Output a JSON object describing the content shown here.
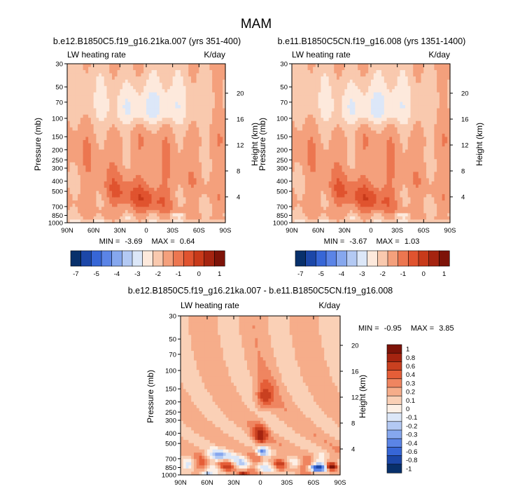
{
  "title": "MAM",
  "panels": [
    {
      "title": "b.e12.B1850C5.f19_g16.21ka.007 (yrs 351-400)",
      "left_label": "LW heating rate",
      "right_label": "K/day",
      "ylabel": "Pressure (mb)",
      "ylabel_right": "Height (km)",
      "min_label": "MIN =",
      "min": "-3.69",
      "max_label": "MAX =",
      "max": "0.64"
    },
    {
      "title": "b.e11.B1850C5CN.f19_g16.008 (yrs 1351-1400)",
      "left_label": "LW heating rate",
      "right_label": "K/day",
      "ylabel": "Pressure (mb)",
      "ylabel_right": "Height (km)",
      "min_label": "MIN =",
      "min": "-3.67",
      "max_label": "MAX =",
      "max": "1.03"
    },
    {
      "title": "b.e12.B1850C5.f19_g16.21ka.007 - b.e11.B1850C5CN.f19_g16.008",
      "left_label": "LW heating rate",
      "right_label": "K/day",
      "ylabel": "Pressure (mb)",
      "ylabel_right": "Height (km)",
      "min_label": "MIN =",
      "min": "-0.95",
      "max_label": "MAX =",
      "max": "3.85"
    }
  ],
  "chart_data": [
    {
      "type": "heatmap",
      "title": "b.e12.B1850C5.f19_g16.21ka.007 (yrs 351-400)",
      "variable": "LW heating rate",
      "units": "K/day",
      "x_ticks": [
        "90N",
        "60N",
        "30N",
        "0",
        "30S",
        "60S",
        "90S"
      ],
      "x_values": [
        90,
        60,
        30,
        0,
        -30,
        -60,
        -90
      ],
      "y_ticks": [
        "30",
        "50",
        "70",
        "100",
        "150",
        "200",
        "250",
        "300",
        "400",
        "500",
        "700",
        "850",
        "1000"
      ],
      "y_values": [
        30,
        50,
        70,
        100,
        150,
        200,
        250,
        300,
        400,
        500,
        700,
        850,
        1000
      ],
      "height_ticks": [
        "20",
        "16",
        "12",
        "8",
        "4"
      ],
      "height_values": [
        20,
        16,
        12,
        8,
        4
      ],
      "colorbar_levels": [
        -7,
        -6,
        -5,
        -4.5,
        -4,
        -3.5,
        -3,
        -2.5,
        -2,
        -1.5,
        -1,
        -0.5,
        0,
        0.5,
        1
      ],
      "colorbar_labels": [
        "-7",
        "-5",
        "-4",
        "-3",
        "-2",
        "-1",
        "0",
        "1"
      ],
      "colorbar_label_values": [
        -7,
        -5,
        -4,
        -3,
        -2,
        -1,
        0,
        1
      ],
      "min": -3.69,
      "max": 0.64
    },
    {
      "type": "heatmap",
      "title": "b.e11.B1850C5CN.f19_g16.008 (yrs 1351-1400)",
      "variable": "LW heating rate",
      "units": "K/day",
      "x_ticks": [
        "90N",
        "60N",
        "30N",
        "0",
        "30S",
        "60S",
        "90S"
      ],
      "x_values": [
        90,
        60,
        30,
        0,
        -30,
        -60,
        -90
      ],
      "y_ticks": [
        "30",
        "50",
        "70",
        "100",
        "150",
        "200",
        "250",
        "300",
        "400",
        "500",
        "700",
        "850",
        "1000"
      ],
      "y_values": [
        30,
        50,
        70,
        100,
        150,
        200,
        250,
        300,
        400,
        500,
        700,
        850,
        1000
      ],
      "height_ticks": [
        "20",
        "16",
        "12",
        "8",
        "4"
      ],
      "height_values": [
        20,
        16,
        12,
        8,
        4
      ],
      "colorbar_levels": [
        -7,
        -6,
        -5,
        -4.5,
        -4,
        -3.5,
        -3,
        -2.5,
        -2,
        -1.5,
        -1,
        -0.5,
        0,
        0.5,
        1
      ],
      "colorbar_labels": [
        "-7",
        "-5",
        "-4",
        "-3",
        "-2",
        "-1",
        "0",
        "1"
      ],
      "colorbar_label_values": [
        -7,
        -5,
        -4,
        -3,
        -2,
        -1,
        0,
        1
      ],
      "min": -3.67,
      "max": 1.03
    },
    {
      "type": "heatmap",
      "title": "b.e12.B1850C5.f19_g16.21ka.007 - b.e11.B1850C5CN.f19_g16.008",
      "variable": "LW heating rate",
      "units": "K/day",
      "x_ticks": [
        "90N",
        "60N",
        "30N",
        "0",
        "30S",
        "60S",
        "90S"
      ],
      "x_values": [
        90,
        60,
        30,
        0,
        -30,
        -60,
        -90
      ],
      "y_ticks": [
        "30",
        "50",
        "70",
        "100",
        "150",
        "200",
        "250",
        "300",
        "400",
        "500",
        "700",
        "850",
        "1000"
      ],
      "y_values": [
        30,
        50,
        70,
        100,
        150,
        200,
        250,
        300,
        400,
        500,
        700,
        850,
        1000
      ],
      "height_ticks": [
        "20",
        "16",
        "12",
        "8",
        "4"
      ],
      "height_values": [
        20,
        16,
        12,
        8,
        4
      ],
      "colorbar_levels": [
        -1,
        -0.8,
        -0.6,
        -0.4,
        -0.3,
        -0.2,
        -0.1,
        0,
        0.1,
        0.2,
        0.3,
        0.4,
        0.6,
        0.8,
        1
      ],
      "colorbar_labels": [
        "1",
        "0.8",
        "0.6",
        "0.4",
        "0.3",
        "0.2",
        "0.1",
        "0",
        "-0.1",
        "-0.2",
        "-0.3",
        "-0.4",
        "-0.6",
        "-0.8",
        "-1"
      ],
      "colorbar_label_values": [
        1,
        0.8,
        0.6,
        0.4,
        0.3,
        0.2,
        0.1,
        0,
        -0.1,
        -0.2,
        -0.3,
        -0.4,
        -0.6,
        -0.8,
        -1
      ],
      "min": -0.95,
      "max": 3.85
    }
  ],
  "colors": {
    "palette": [
      "#08306b",
      "#1c47a8",
      "#3766d6",
      "#5b84e6",
      "#86a7ee",
      "#b3c9f3",
      "#dce7f8",
      "#fde9dc",
      "#f9c9ae",
      "#f4a07c",
      "#ec7650",
      "#e0532f",
      "#c83a1a",
      "#a52410",
      "#7d1308"
    ],
    "diff_palette": [
      "#08306b",
      "#1c47a8",
      "#3766d6",
      "#5b84e6",
      "#86a7ee",
      "#b3c9f3",
      "#dce7f8",
      "#fdf0e6",
      "#fad0b6",
      "#f6ad8a",
      "#ef8560",
      "#e55e38",
      "#c94020",
      "#a52410",
      "#7d1308"
    ]
  }
}
